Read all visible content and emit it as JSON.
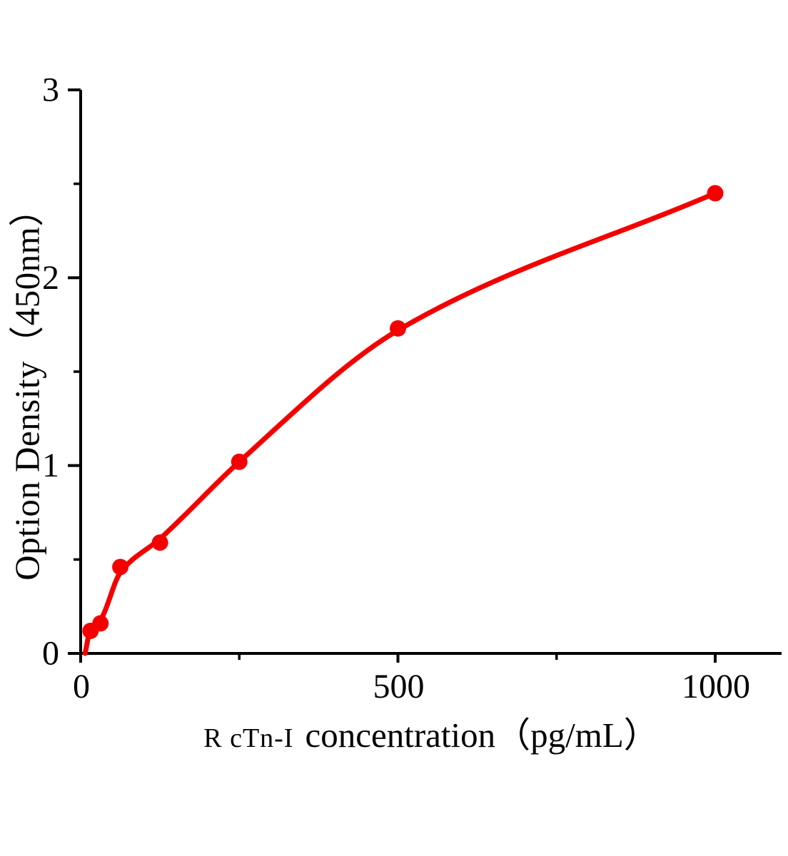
{
  "figure": {
    "background": "#ffffff"
  },
  "chart_data": {
    "type": "scatter",
    "title": "",
    "xlabel_analyte": "R cTn-I",
    "xlabel_rest": "concentration（pg/mL）",
    "ylabel": "Option Density（450nm）",
    "x_major_ticks": [
      0,
      500,
      1000
    ],
    "x_minor_ticks": [
      250,
      750
    ],
    "y_major_ticks": [
      0,
      1,
      2,
      3
    ],
    "y_minor_ticks": [
      0.5,
      1.5,
      2.5
    ],
    "xlim": [
      0,
      1105
    ],
    "ylim": [
      0,
      3
    ],
    "grid": false,
    "legend": "none",
    "points": [
      [
        15.6,
        0.12
      ],
      [
        31.2,
        0.16
      ],
      [
        62.5,
        0.46
      ],
      [
        125,
        0.59
      ],
      [
        250,
        1.02
      ],
      [
        500,
        1.73
      ],
      [
        1000,
        2.45
      ]
    ],
    "fit_curve": [
      [
        7,
        0.0
      ],
      [
        15.6,
        0.13
      ],
      [
        31.2,
        0.18
      ],
      [
        62.5,
        0.43
      ],
      [
        125,
        0.61
      ],
      [
        250,
        1.02
      ],
      [
        500,
        1.72
      ],
      [
        1000,
        2.45
      ]
    ],
    "colors": {
      "series": "#f40000",
      "axis": "#000000"
    }
  }
}
